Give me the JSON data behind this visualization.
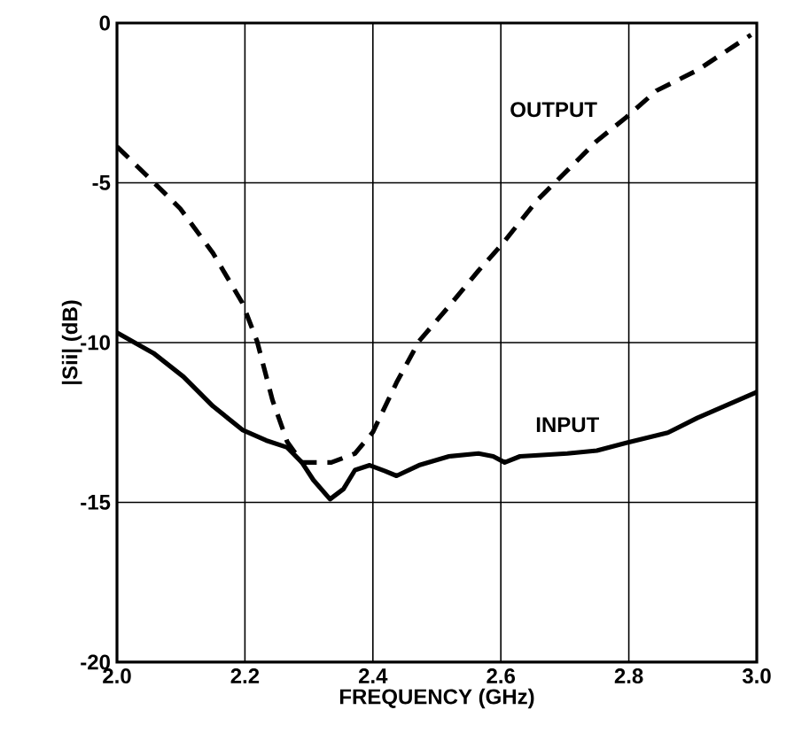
{
  "chart_data": {
    "type": "line",
    "xlabel": "FREQUENCY (GHz)",
    "ylabel": "|Sii| (dB)",
    "xlim": [
      2.0,
      3.0
    ],
    "ylim": [
      -20,
      0
    ],
    "xticks": [
      {
        "value": 2.0,
        "label": "2.0"
      },
      {
        "value": 2.2,
        "label": "2.2"
      },
      {
        "value": 2.4,
        "label": "2.4"
      },
      {
        "value": 2.6,
        "label": "2.6"
      },
      {
        "value": 2.8,
        "label": "2.8"
      },
      {
        "value": 3.0,
        "label": "3.0"
      }
    ],
    "yticks": [
      0,
      -5,
      -10,
      -15,
      -20
    ],
    "grid": true,
    "series": [
      {
        "name": "OUTPUT",
        "color": "#000000",
        "line_style": "dashed",
        "x": [
          2.0,
          2.048,
          2.099,
          2.15,
          2.196,
          2.219,
          2.243,
          2.266,
          2.289,
          2.335,
          2.372,
          2.4,
          2.437,
          2.472,
          2.519,
          2.565,
          2.602,
          2.657,
          2.704,
          2.75,
          2.796,
          2.843,
          2.907,
          2.991
        ],
        "values": [
          -3.87,
          -4.8,
          -5.81,
          -7.2,
          -8.76,
          -9.96,
          -11.8,
          -13.1,
          -13.75,
          -13.75,
          -13.47,
          -12.8,
          -11.25,
          -9.96,
          -8.86,
          -7.75,
          -6.92,
          -5.54,
          -4.61,
          -3.69,
          -2.95,
          -2.12,
          -1.48,
          -0.37
        ]
      },
      {
        "name": "INPUT",
        "color": "#000000",
        "line_style": "solid",
        "x": [
          2.0,
          2.057,
          2.104,
          2.15,
          2.196,
          2.233,
          2.266,
          2.289,
          2.307,
          2.333,
          2.354,
          2.372,
          2.395,
          2.419,
          2.437,
          2.472,
          2.519,
          2.565,
          2.588,
          2.606,
          2.63,
          2.704,
          2.75,
          2.796,
          2.861,
          2.907,
          3.0
        ],
        "values": [
          -9.69,
          -10.33,
          -11.07,
          -11.99,
          -12.73,
          -13.06,
          -13.28,
          -13.75,
          -14.3,
          -14.9,
          -14.58,
          -13.99,
          -13.84,
          -14.02,
          -14.17,
          -13.84,
          -13.56,
          -13.47,
          -13.56,
          -13.75,
          -13.56,
          -13.47,
          -13.38,
          -13.14,
          -12.82,
          -12.36,
          -11.55
        ]
      }
    ]
  }
}
